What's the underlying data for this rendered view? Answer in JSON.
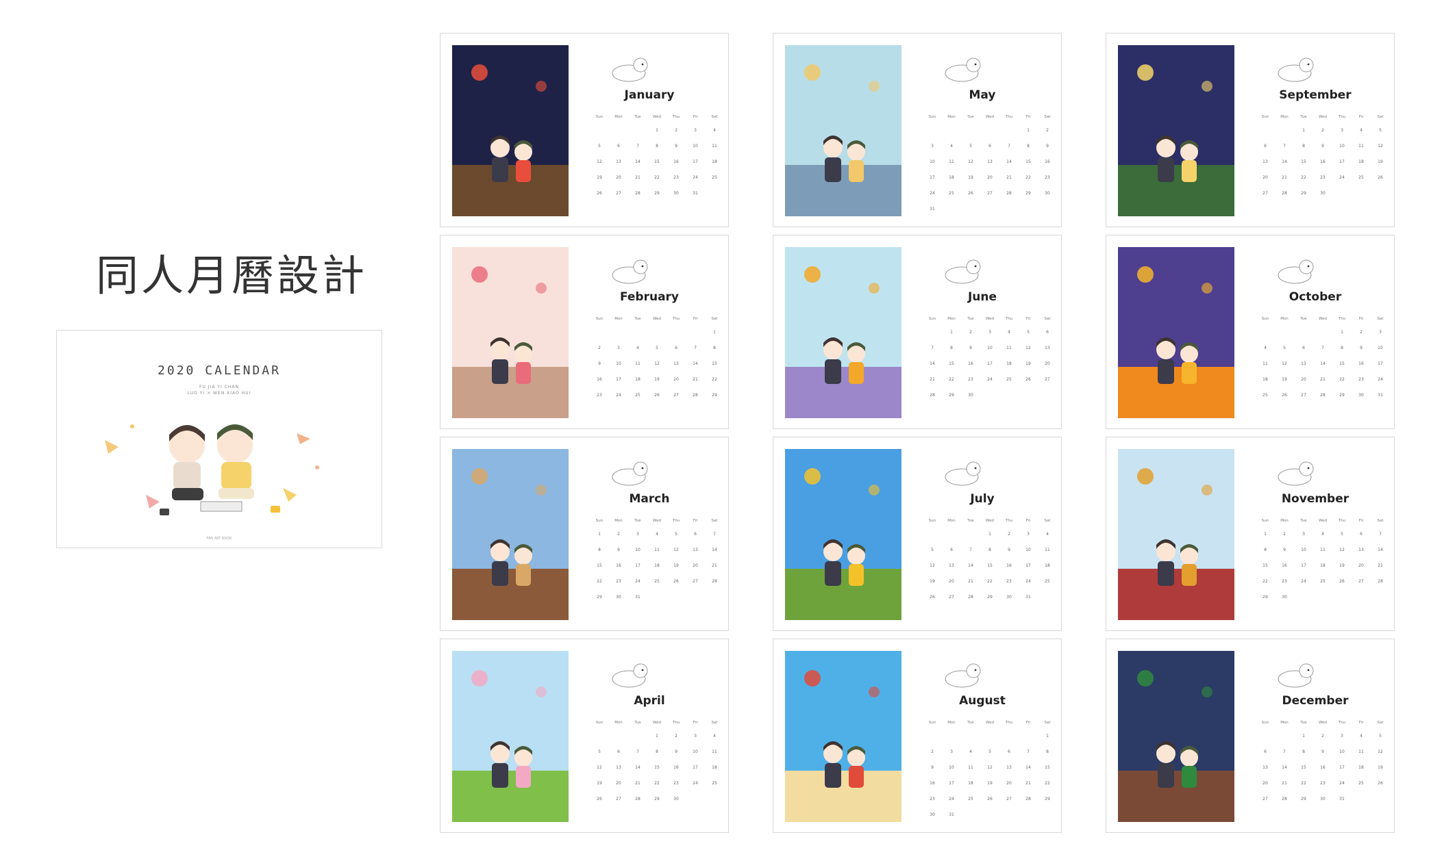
{
  "page_title": "同人月曆設計",
  "cover": {
    "title": "2020 CALENDAR",
    "subtitle_line1": "FU JIA YI CHAN",
    "subtitle_line2": "LUO YI × WEN XIAO HUI",
    "footer": "FAN ART BOOK"
  },
  "weekday_headers": [
    "Sun",
    "Mon",
    "Tue",
    "Wed",
    "Thu",
    "Fri",
    "Sat"
  ],
  "months": [
    {
      "name": "January",
      "start": 3,
      "days": 31,
      "sky": "#1f2247",
      "ground": "#6b4a2e",
      "accent": "#e94e3c"
    },
    {
      "name": "February",
      "start": 6,
      "days": 29,
      "sky": "#f7e1da",
      "ground": "#c9a08a",
      "accent": "#e96c7b"
    },
    {
      "name": "March",
      "start": 0,
      "days": 31,
      "sky": "#8bb7e0",
      "ground": "#8a5a3a",
      "accent": "#d9a867"
    },
    {
      "name": "April",
      "start": 3,
      "days": 30,
      "sky": "#b9dff5",
      "ground": "#7fbf4a",
      "accent": "#f3a9c3"
    },
    {
      "name": "May",
      "start": 5,
      "days": 31,
      "sky": "#b7dde8",
      "ground": "#7d9cb8",
      "accent": "#f2c86a"
    },
    {
      "name": "June",
      "start": 1,
      "days": 30,
      "sky": "#bfe4f0",
      "ground": "#9b87c9",
      "accent": "#f3a829"
    },
    {
      "name": "July",
      "start": 3,
      "days": 31,
      "sky": "#4a9fe3",
      "ground": "#6ea33c",
      "accent": "#f3c22a"
    },
    {
      "name": "August",
      "start": 6,
      "days": 31,
      "sky": "#4fb0e8",
      "ground": "#f3dca0",
      "accent": "#e04b3a"
    },
    {
      "name": "September",
      "start": 2,
      "days": 30,
      "sky": "#2c2f66",
      "ground": "#3b6c3a",
      "accent": "#f5d36a"
    },
    {
      "name": "October",
      "start": 4,
      "days": 31,
      "sky": "#4e3f8f",
      "ground": "#f08a1e",
      "accent": "#f6b52c"
    },
    {
      "name": "November",
      "start": 0,
      "days": 30,
      "sky": "#c9e3f2",
      "ground": "#b03b3b",
      "accent": "#e3a02f"
    },
    {
      "name": "December",
      "start": 2,
      "days": 31,
      "sky": "#2c3b66",
      "ground": "#7a4a36",
      "accent": "#2f8a3e"
    }
  ],
  "colors": {
    "card_border": "#d8d8d8",
    "text": "#222222"
  }
}
